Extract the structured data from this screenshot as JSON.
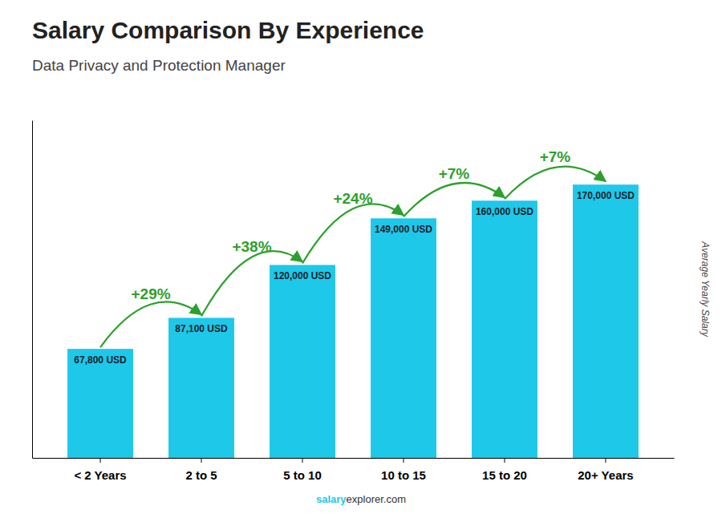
{
  "chart_data": {
    "type": "bar",
    "title": "Salary Comparison By Experience",
    "subtitle": "Data Privacy and Protection Manager",
    "categories": [
      "< 2 Years",
      "2 to 5",
      "5 to 10",
      "10 to 15",
      "15 to 20",
      "20+ Years"
    ],
    "values": [
      67800,
      87100,
      120000,
      149000,
      160000,
      170000
    ],
    "value_labels": [
      "67,800 USD",
      "87,100 USD",
      "120,000 USD",
      "149,000 USD",
      "160,000 USD",
      "170,000 USD"
    ],
    "data_labels": true,
    "color": "#1EC8E8",
    "ylabel": "Average Yearly Salary",
    "ylim": [
      0,
      210000
    ],
    "tick_labels": "x",
    "grid": false,
    "annotations": [
      "+29%",
      "+38%",
      "+24%",
      "+7%",
      "+7%"
    ],
    "footer": [
      "salary",
      "explorer.com"
    ]
  }
}
